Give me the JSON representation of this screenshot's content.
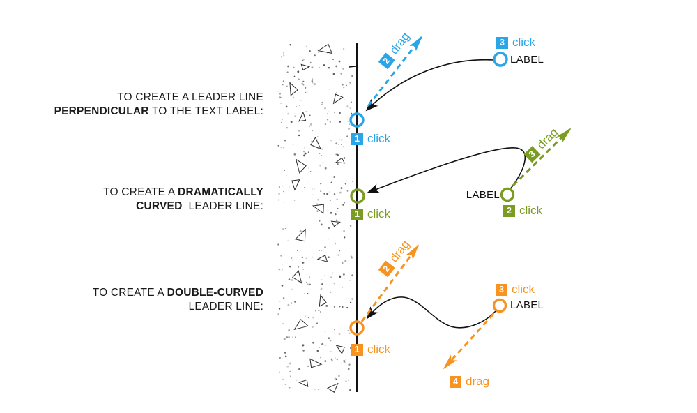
{
  "title": "How to create leader lines diagram",
  "colors": {
    "blue": "#29A5E8",
    "green": "#7A9C23",
    "orange": "#F7931E",
    "ink": "#1A1A1A",
    "wall_line": "#111111"
  },
  "instructions": [
    {
      "line1": [
        {
          "t": "TO CREATE A LEADER LINE"
        }
      ],
      "line2": [
        {
          "t": "PERPENDICULAR"
        },
        {
          "t": " TO THE TEXT LABEL:"
        }
      ]
    },
    {
      "line1": [
        {
          "t": "TO CREATE A "
        },
        {
          "t": "DRAMATICALLY"
        }
      ],
      "line2": [
        {
          "t": "CURVED"
        },
        {
          "t": "  LEADER LINE:"
        }
      ]
    },
    {
      "line1": [
        {
          "t": "TO CREATE A "
        },
        {
          "t": "DOUBLE-CURVED"
        }
      ],
      "line2": [
        {
          "t": "LEADER LINE:"
        }
      ]
    }
  ],
  "groups": {
    "perpendicular": {
      "wall_num": "1",
      "wall_action": "click",
      "drag_num": "2",
      "drag_action": "drag",
      "label_num": "3",
      "label_action": "click",
      "label_text": "LABEL"
    },
    "dramatic": {
      "wall_num": "1",
      "wall_action": "click",
      "label_num": "2",
      "label_action": "click",
      "drag_num": "3",
      "drag_action": "drag",
      "label_text": "LABEL"
    },
    "double_curved": {
      "wall_num": "1",
      "wall_action": "click",
      "drag_num": "2",
      "drag_action": "drag",
      "label_num": "3",
      "label_action": "click",
      "drag2_num": "4",
      "drag2_action": "drag",
      "label_text": "LABEL"
    }
  }
}
